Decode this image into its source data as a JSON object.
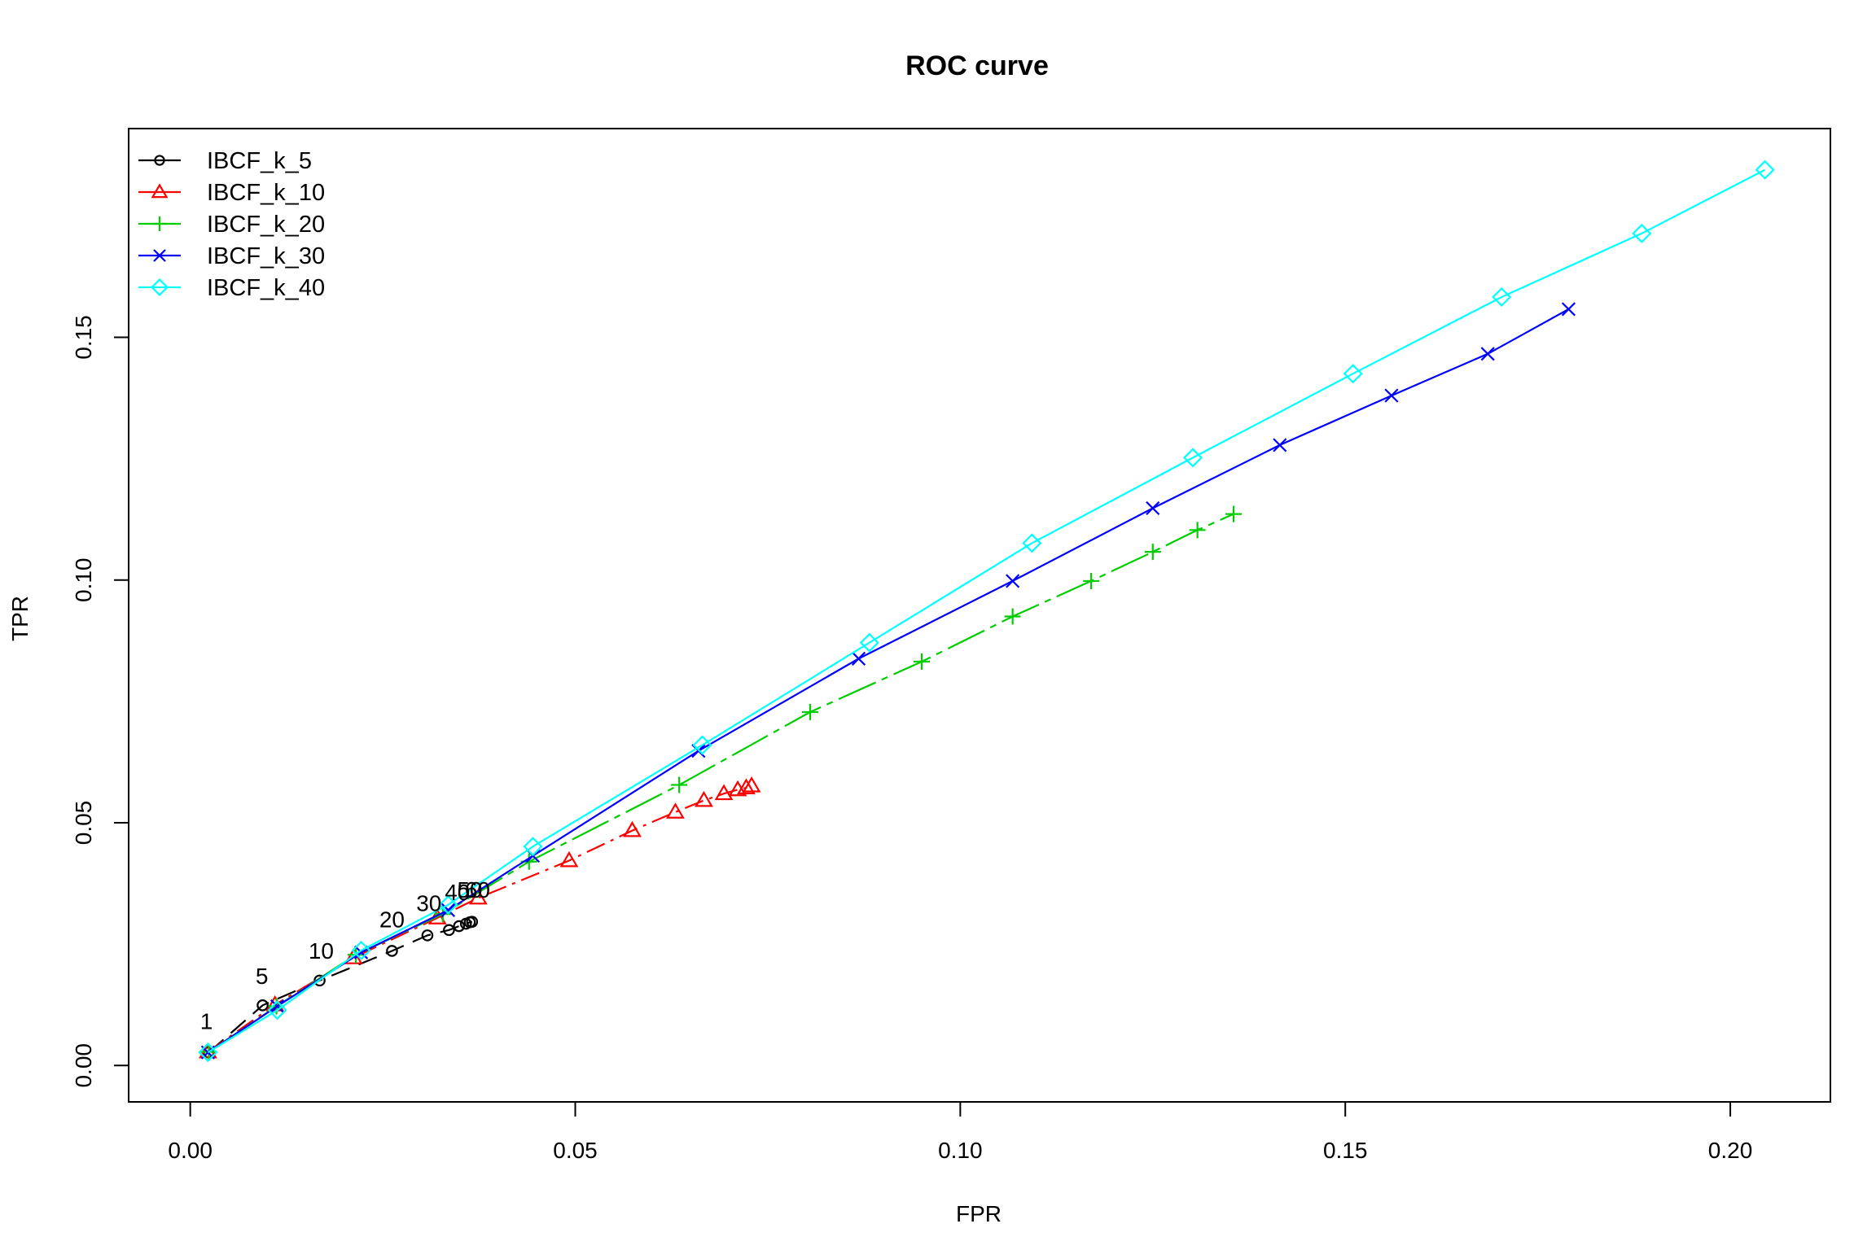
{
  "chart_data": {
    "type": "line",
    "title": "ROC curve",
    "xlabel": "FPR",
    "ylabel": "TPR",
    "xlim": [
      -0.008,
      0.213
    ],
    "ylim": [
      -0.0075,
      0.193
    ],
    "x_ticks": [
      0.0,
      0.05,
      0.1,
      0.15,
      0.2
    ],
    "x_tick_labels": [
      "0.00",
      "0.05",
      "0.10",
      "0.15",
      "0.20"
    ],
    "y_ticks": [
      0.0,
      0.05,
      0.1,
      0.15
    ],
    "y_tick_labels": [
      "0.00",
      "0.05",
      "0.10",
      "0.15"
    ],
    "grid": false,
    "legend_position": "top-left",
    "series": [
      {
        "name": "IBCF_k_5",
        "color": "#000000",
        "marker": "circle",
        "dash": "24,12",
        "points": [
          [
            0.0024,
            0.0027
          ],
          [
            0.0094,
            0.0124
          ],
          [
            0.0168,
            0.0175
          ],
          [
            0.0262,
            0.0236
          ],
          [
            0.0308,
            0.0268
          ],
          [
            0.0336,
            0.0279
          ],
          [
            0.0349,
            0.0287
          ],
          [
            0.0358,
            0.0292
          ],
          [
            0.0363,
            0.0295
          ],
          [
            0.0366,
            0.0296
          ]
        ]
      },
      {
        "name": "IBCF_k_10",
        "color": "#ff0000",
        "marker": "triangle",
        "dash": "24,8,4,8",
        "points": [
          [
            0.0023,
            0.0028
          ],
          [
            0.011,
            0.0125
          ],
          [
            0.0212,
            0.0222
          ],
          [
            0.0321,
            0.0304
          ],
          [
            0.0374,
            0.0345
          ],
          [
            0.0492,
            0.0422
          ],
          [
            0.0574,
            0.0484
          ],
          [
            0.063,
            0.0522
          ],
          [
            0.0667,
            0.0546
          ],
          [
            0.0693,
            0.056
          ],
          [
            0.0711,
            0.0568
          ],
          [
            0.0722,
            0.0572
          ],
          [
            0.0729,
            0.0576
          ]
        ]
      },
      {
        "name": "IBCF_k_20",
        "color": "#00cd00",
        "marker": "plus",
        "dash": "50,8,8,8",
        "points": [
          [
            0.0024,
            0.0028
          ],
          [
            0.0112,
            0.0122
          ],
          [
            0.0215,
            0.0228
          ],
          [
            0.0328,
            0.0312
          ],
          [
            0.044,
            0.042
          ],
          [
            0.0635,
            0.0578
          ],
          [
            0.0805,
            0.0728
          ],
          [
            0.095,
            0.0832
          ],
          [
            0.1068,
            0.0925
          ],
          [
            0.117,
            0.0998
          ],
          [
            0.125,
            0.1058
          ],
          [
            0.1308,
            0.1103
          ],
          [
            0.1355,
            0.1136
          ]
        ]
      },
      {
        "name": "IBCF_k_30",
        "color": "#0000ff",
        "marker": "cross",
        "dash": "",
        "points": [
          [
            0.0023,
            0.0027
          ],
          [
            0.0113,
            0.0122
          ],
          [
            0.0222,
            0.0233
          ],
          [
            0.0335,
            0.032
          ],
          [
            0.0445,
            0.0432
          ],
          [
            0.066,
            0.0648
          ],
          [
            0.0868,
            0.0838
          ],
          [
            0.1068,
            0.0998
          ],
          [
            0.125,
            0.1148
          ],
          [
            0.1415,
            0.1278
          ],
          [
            0.156,
            0.138
          ],
          [
            0.1685,
            0.1466
          ],
          [
            0.179,
            0.1558
          ]
        ]
      },
      {
        "name": "IBCF_k_40",
        "color": "#00ffff",
        "marker": "diamond",
        "dash": "",
        "points": [
          [
            0.0023,
            0.0027
          ],
          [
            0.0113,
            0.0114
          ],
          [
            0.0222,
            0.0237
          ],
          [
            0.0335,
            0.0331
          ],
          [
            0.0445,
            0.0451
          ],
          [
            0.0665,
            0.066
          ],
          [
            0.0882,
            0.0871
          ],
          [
            0.1093,
            0.1076
          ],
          [
            0.1302,
            0.1252
          ],
          [
            0.151,
            0.1425
          ],
          [
            0.1703,
            0.1583
          ],
          [
            0.1885,
            0.1714
          ],
          [
            0.2045,
            0.1845
          ]
        ]
      }
    ],
    "point_labels": [
      {
        "text": "1",
        "x": 0.0021,
        "y": 0.0075
      },
      {
        "text": "5",
        "x": 0.0093,
        "y": 0.0168
      },
      {
        "text": "10",
        "x": 0.017,
        "y": 0.022
      },
      {
        "text": "20",
        "x": 0.0262,
        "y": 0.0285
      },
      {
        "text": "30",
        "x": 0.031,
        "y": 0.0318
      },
      {
        "text": "40",
        "x": 0.0347,
        "y": 0.0341
      },
      {
        "text": "50",
        "x": 0.0363,
        "y": 0.0346
      },
      {
        "text": "60",
        "x": 0.0373,
        "y": 0.0346
      }
    ]
  }
}
